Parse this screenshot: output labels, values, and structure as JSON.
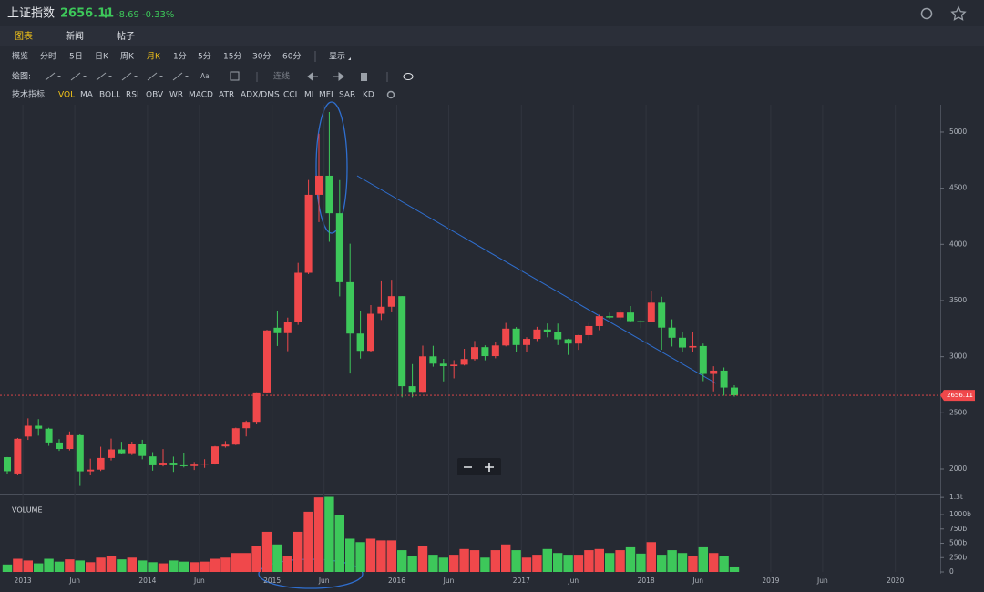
{
  "header": {
    "title": "上证指数",
    "change": "-8.69",
    "change_pct": "-0.33%"
  },
  "tabs": [
    "图表",
    "新闻",
    "帖子"
  ],
  "periods": [
    "概览",
    "分时",
    "5日",
    "日K",
    "周K",
    "月K",
    "1分",
    "5分",
    "15分",
    "30分",
    "60分",
    "显示"
  ],
  "drawing": {
    "label": "绘图:",
    "items": [
      "Aa",
      "连线"
    ]
  },
  "indicators": {
    "label": "技术指标:",
    "items": [
      "VOL",
      "MA",
      "BOLL",
      "RSI",
      "OBV",
      "WR",
      "MACD",
      "ATR",
      "ADX/DMS",
      "CCI",
      "MI",
      "MFI",
      "SAR",
      "KD"
    ]
  },
  "chart_data": {
    "type": "candlestick",
    "x": [
      "2012-11",
      "2012-12",
      "2013-01",
      "2013-02",
      "2013-03",
      "2013-04",
      "2013-05",
      "2013-06",
      "2013-07",
      "2013-08",
      "2013-09",
      "2013-10",
      "2013-11",
      "2013-12",
      "2014-01",
      "2014-02",
      "2014-03",
      "2014-04",
      "2014-05",
      "2014-06",
      "2014-07",
      "2014-08",
      "2014-09",
      "2014-10",
      "2014-11",
      "2014-12",
      "2015-01",
      "2015-02",
      "2015-03",
      "2015-04",
      "2015-05",
      "2015-06",
      "2015-07",
      "2015-08",
      "2015-09",
      "2015-10",
      "2015-11",
      "2015-12",
      "2016-01",
      "2016-02",
      "2016-03",
      "2016-04",
      "2016-05",
      "2016-06",
      "2016-07",
      "2016-08",
      "2016-09",
      "2016-10",
      "2016-11",
      "2016-12",
      "2017-01",
      "2017-02",
      "2017-03",
      "2017-04",
      "2017-05",
      "2017-06",
      "2017-07",
      "2017-08",
      "2017-09",
      "2017-10",
      "2017-11",
      "2017-12",
      "2018-01",
      "2018-02",
      "2018-03",
      "2018-04",
      "2018-05",
      "2018-06",
      "2018-07",
      "2018-08",
      "2018-09"
    ],
    "open": [
      2105,
      1960,
      2289,
      2385,
      2359,
      2236,
      2178,
      2301,
      1979,
      1994,
      2098,
      2174,
      2141,
      2220,
      2112,
      2033,
      2056,
      2033,
      2026,
      2039,
      2048,
      2201,
      2217,
      2363,
      2420,
      2682,
      3258,
      3210,
      3310,
      3747,
      4441,
      4611,
      4277,
      3663,
      3206,
      3052,
      3382,
      3445,
      3539,
      2737,
      2687,
      3003,
      2938,
      2916,
      2929,
      2979,
      3085,
      3005,
      3100,
      3250,
      3104,
      3159,
      3242,
      3223,
      3155,
      3117,
      3192,
      3273,
      3361,
      3349,
      3393,
      3317,
      3307,
      3481,
      3259,
      3169,
      3082,
      3095,
      2847,
      2876,
      2725
    ],
    "high": [
      2106,
      2276,
      2451,
      2444,
      2367,
      2265,
      2334,
      2315,
      2092,
      2198,
      2270,
      2242,
      2243,
      2260,
      2150,
      2177,
      2110,
      2146,
      2062,
      2087,
      2205,
      2248,
      2368,
      2431,
      2683,
      3239,
      3406,
      3348,
      3835,
      4573,
      4986,
      5178,
      4572,
      4006,
      3407,
      3459,
      3679,
      3685,
      3539,
      2934,
      3098,
      3097,
      2981,
      2969,
      3070,
      3140,
      3101,
      3134,
      3301,
      3264,
      3174,
      3266,
      3296,
      3295,
      3160,
      3195,
      3301,
      3375,
      3392,
      3418,
      3451,
      3328,
      3587,
      3534,
      3333,
      3221,
      3219,
      3117,
      2915,
      2904,
      2746
    ],
    "low": [
      1959,
      1949,
      2259,
      2297,
      2206,
      2161,
      2165,
      1849,
      1951,
      1982,
      2076,
      2134,
      2124,
      2086,
      1985,
      2023,
      1974,
      2014,
      1991,
      2010,
      2039,
      2190,
      2213,
      2290,
      2400,
      2679,
      3095,
      3049,
      3284,
      3735,
      4198,
      4023,
      3537,
      2850,
      2983,
      3039,
      3327,
      3395,
      2638,
      2638,
      2685,
      2911,
      2780,
      2807,
      2922,
      2966,
      2968,
      2986,
      3092,
      3043,
      3044,
      3139,
      3173,
      3104,
      3016,
      3061,
      3152,
      3236,
      3338,
      3329,
      3306,
      3254,
      3306,
      3062,
      3091,
      3041,
      3043,
      2782,
      2691,
      2653,
      2644
    ],
    "close": [
      1980,
      2269,
      2385,
      2359,
      2236,
      2178,
      2301,
      1979,
      1994,
      2098,
      2174,
      2141,
      2220,
      2116,
      2033,
      2056,
      2033,
      2026,
      2039,
      2048,
      2201,
      2217,
      2363,
      2420,
      2682,
      3234,
      3210,
      3310,
      3747,
      4441,
      4611,
      4277,
      3663,
      3206,
      3052,
      3382,
      3445,
      3539,
      2737,
      2687,
      3003,
      2938,
      2916,
      2929,
      2979,
      3085,
      3005,
      3100,
      3250,
      3104,
      3159,
      3242,
      3223,
      3155,
      3117,
      3192,
      3273,
      3361,
      3349,
      3393,
      3317,
      3307,
      3481,
      3259,
      3169,
      3082,
      3095,
      2847,
      2876,
      2725,
      2656
    ],
    "up_color": "#f0484b",
    "down_color": "#3dc85a",
    "ylim": [
      1781,
      5243
    ],
    "yticks": [
      2000,
      2500,
      3000,
      3500,
      4000,
      4500,
      5000
    ],
    "xticks": [
      {
        "value": "2013-01",
        "label": "2013"
      },
      {
        "value": "2013-06",
        "label": "Jun"
      },
      {
        "value": "2014-01",
        "label": "2014"
      },
      {
        "value": "2014-06",
        "label": "Jun"
      },
      {
        "value": "2015-01",
        "label": "2015"
      },
      {
        "value": "2015-06",
        "label": "Jun"
      },
      {
        "value": "2016-01",
        "label": "2016"
      },
      {
        "value": "2016-06",
        "label": "Jun"
      },
      {
        "value": "2017-01",
        "label": "2017"
      },
      {
        "value": "2017-06",
        "label": "Jun"
      },
      {
        "value": "2018-01",
        "label": "2018"
      },
      {
        "value": "2018-06",
        "label": "Jun"
      },
      {
        "value": "2019-01",
        "label": "2019"
      },
      {
        "value": "2019-06",
        "label": "Jun"
      },
      {
        "value": "2020-01",
        "label": "2020"
      }
    ],
    "last_price": 2656.11,
    "volume": {
      "label": "VOLUME",
      "values": [
        130,
        230,
        200,
        150,
        230,
        180,
        220,
        200,
        170,
        250,
        280,
        220,
        250,
        200,
        170,
        150,
        200,
        180,
        170,
        180,
        230,
        250,
        330,
        330,
        450,
        700,
        480,
        280,
        700,
        1050,
        1300,
        1310,
        1000,
        580,
        520,
        580,
        550,
        550,
        380,
        280,
        450,
        300,
        250,
        300,
        400,
        380,
        250,
        380,
        480,
        380,
        250,
        300,
        400,
        330,
        300,
        300,
        380,
        400,
        330,
        380,
        430,
        320,
        520,
        300,
        380,
        330,
        280,
        430,
        330,
        280,
        80
      ],
      "ylim": [
        0,
        1350
      ],
      "yticks": [
        0,
        {
          "value": 250,
          "label": "250b"
        },
        {
          "value": 500,
          "label": "500b"
        },
        {
          "value": 750,
          "label": "750b"
        },
        {
          "value": 1000,
          "label": "1000b"
        },
        {
          "value": 1300,
          "label": "1.3t"
        }
      ]
    }
  }
}
